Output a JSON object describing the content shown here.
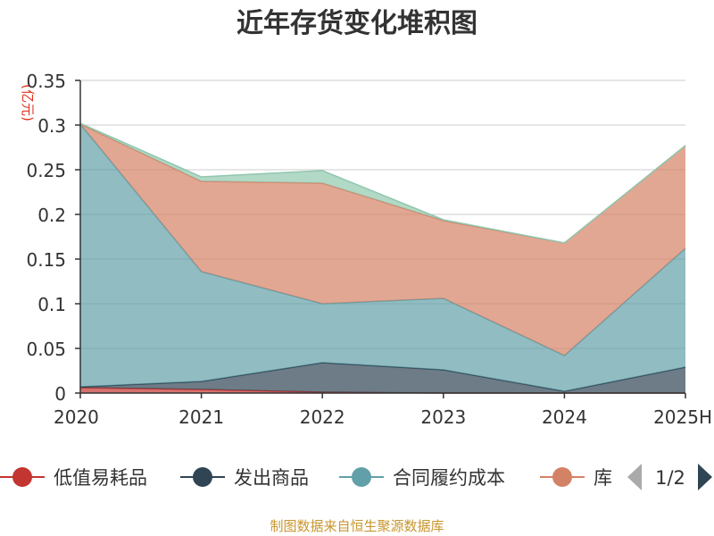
{
  "chart_data": {
    "type": "area",
    "stacked": true,
    "title": "近年存货变化堆积图",
    "ylabel": "(亿元)",
    "categories": [
      "2020",
      "2021",
      "2022",
      "2023",
      "2024",
      "2025H"
    ],
    "ylim": [
      0,
      0.35
    ],
    "yticks": [
      "0",
      "0.05",
      "0.1",
      "0.15",
      "0.2",
      "0.25",
      "0.3",
      "0.35"
    ],
    "grid": true,
    "series": [
      {
        "name": "低值易耗品",
        "color": "#c23531",
        "values": [
          0.006,
          0.004,
          0.001,
          0.0,
          0.0,
          0.0
        ]
      },
      {
        "name": "发出商品",
        "color": "#2f4554",
        "values": [
          0.001,
          0.009,
          0.033,
          0.026,
          0.002,
          0.029
        ]
      },
      {
        "name": "合同履约成本",
        "color": "#61a0a8",
        "values": [
          0.294,
          0.123,
          0.066,
          0.08,
          0.04,
          0.133
        ]
      },
      {
        "name": "库存商品",
        "color": "#d48265",
        "values": [
          0.0,
          0.101,
          0.135,
          0.087,
          0.126,
          0.115
        ]
      },
      {
        "name": "",
        "color": "#91c7ae",
        "values": [
          0.001,
          0.005,
          0.014,
          0.001,
          0.0,
          0.0
        ]
      }
    ]
  },
  "legend": {
    "items": [
      {
        "label": "低值易耗品",
        "color": "#c23531"
      },
      {
        "label": "发出商品",
        "color": "#2f4554"
      },
      {
        "label": "合同履约成本",
        "color": "#61a0a8"
      },
      {
        "label": "库",
        "color": "#d48265"
      }
    ],
    "page_indicator": "1/2",
    "prev_color": "#aaaaaa",
    "next_color": "#2f4554"
  },
  "source": "制图数据来自恒生聚源数据库"
}
